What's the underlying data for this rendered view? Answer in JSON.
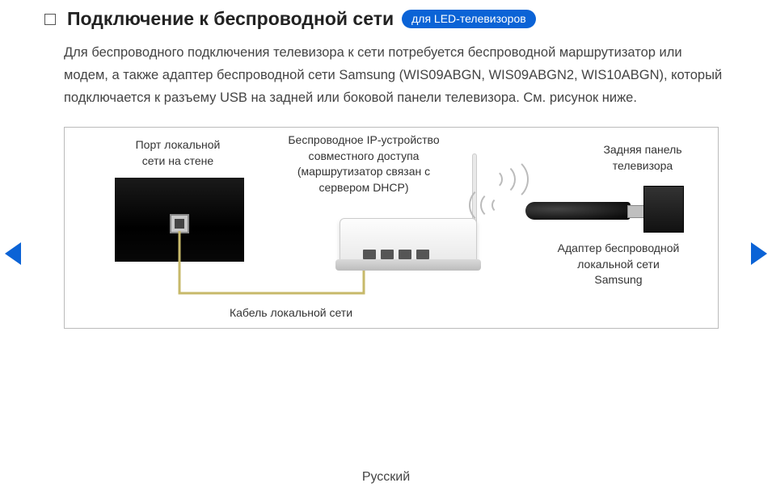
{
  "header": {
    "title": "Подключение к беспроводной сети",
    "badge": "для LED-телевизоров"
  },
  "description": "Для беспроводного подключения телевизора к сети потребуется беспроводной маршрутизатор или модем, а также адаптер беспроводной сети Samsung (WIS09ABGN, WIS09ABGN2, WIS10ABGN), который подключается к разъему USB на задней или боковой панели телевизора. См. рисунок ниже.",
  "diagram": {
    "wall_port_label": "Порт локальной\nсети на стене",
    "router_label": "Беспроводное IP-устройство\nсовместного доступа\n(маршрутизатор связан с\nсервером DHCP)",
    "tv_label": "Задняя панель\nтелевизора",
    "adapter_label": "Адаптер беспроводной\nлокальной сети\nSamsung",
    "cable_label": "Кабель локальной сети"
  },
  "footer": {
    "lang": "Русский"
  },
  "colors": {
    "accent": "#0b63d6",
    "text": "#333333",
    "border": "#bbbbbb",
    "cable": "#c7b96a"
  }
}
